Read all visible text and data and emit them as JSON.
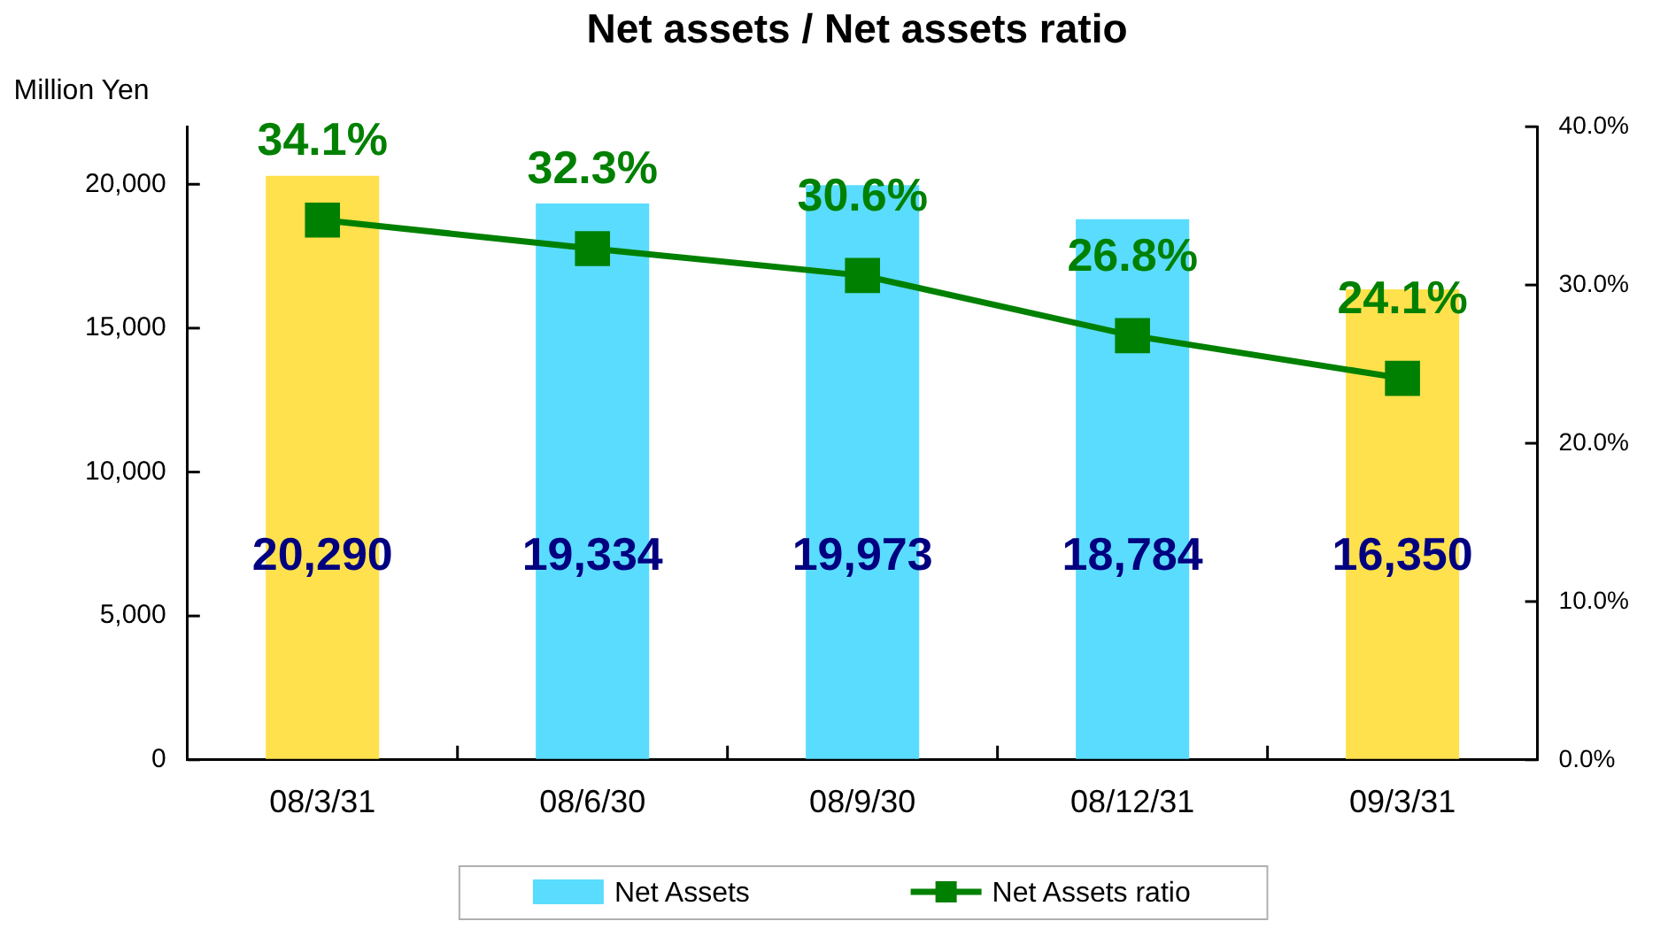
{
  "chart_data": {
    "type": "bar",
    "title": "Net assets / Net assets ratio",
    "ylabel": "Million Yen",
    "categories": [
      "08/3/31",
      "08/6/30",
      "08/9/30",
      "08/12/31",
      "09/3/31"
    ],
    "series": [
      {
        "name": "Net Assets",
        "color": "#5adcff",
        "colors": [
          "#ffe14d",
          "#5adcff",
          "#5adcff",
          "#5adcff",
          "#ffe14d"
        ],
        "values": [
          20290,
          19334,
          19973,
          18784,
          16350
        ],
        "value_labels": [
          "20,290",
          "19,334",
          "19,973",
          "18,784",
          "16,350"
        ]
      },
      {
        "name": "Net Assets ratio",
        "type": "line",
        "axis": "y2",
        "color": "#008000",
        "values": [
          34.1,
          32.3,
          30.6,
          26.8,
          24.1
        ],
        "value_labels": [
          "34.1%",
          "32.3%",
          "30.6%",
          "26.8%",
          "24.1%"
        ]
      }
    ],
    "ylim": [
      0,
      22000
    ],
    "yticks": [
      0,
      {
        "value": 5000,
        "label": "5,000"
      },
      {
        "value": 10000,
        "label": "10,000"
      },
      {
        "value": 15000,
        "label": "15,000"
      },
      {
        "value": 20000,
        "label": "20,000"
      }
    ],
    "y2lim": [
      0,
      40
    ],
    "y2ticks": [
      {
        "value": 0,
        "label": "0.0%"
      },
      {
        "value": 10,
        "label": "10.0%"
      },
      {
        "value": 20,
        "label": "20.0%"
      },
      {
        "value": 30,
        "label": "30.0%"
      },
      {
        "value": 40,
        "label": "40.0%"
      }
    ],
    "legend": "bottom",
    "marker": "square",
    "line_style": "solid"
  }
}
